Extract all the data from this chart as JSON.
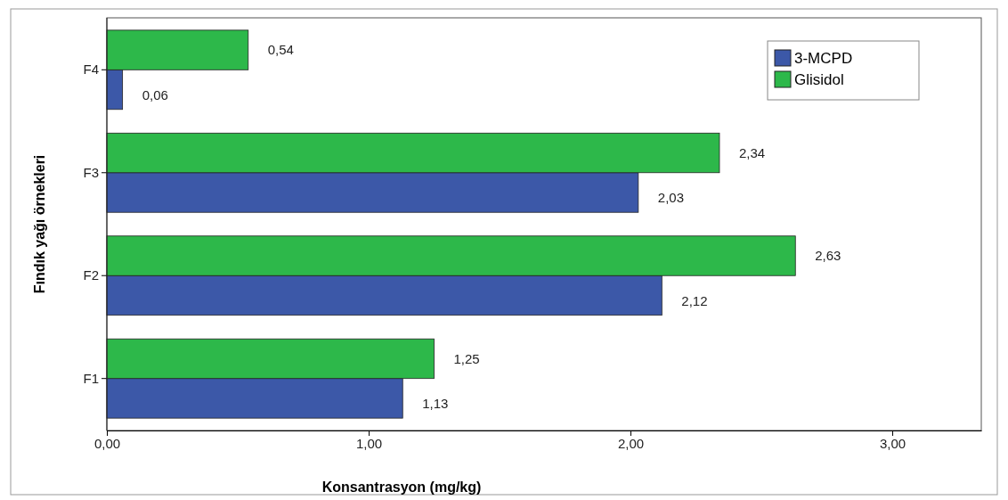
{
  "chart_data": {
    "type": "bar",
    "orientation": "horizontal",
    "xlabel": "Konsantrasyon (mg/kg)",
    "ylabel": "Fındık yağı örnekleri",
    "categories": [
      "F4",
      "F3",
      "F2",
      "F1"
    ],
    "series": [
      {
        "name": "3-MCPD",
        "color": "#3c58a8",
        "values": [
          0.06,
          2.03,
          2.12,
          1.13
        ],
        "value_labels": [
          "0,06",
          "2,03",
          "2,12",
          "1,13"
        ]
      },
      {
        "name": "Glisidol",
        "color": "#2db84a",
        "values": [
          0.54,
          2.34,
          2.63,
          1.25
        ],
        "value_labels": [
          "0,54",
          "2,34",
          "2,63",
          "1,25"
        ]
      }
    ],
    "xlim": [
      0,
      3.34
    ],
    "xticks": [
      {
        "value": 0,
        "label": "0,00"
      },
      {
        "value": 1,
        "label": "1,00"
      },
      {
        "value": 2,
        "label": "2,00"
      },
      {
        "value": 3,
        "label": "3,00"
      }
    ],
    "grid": false,
    "legend": "top right"
  }
}
